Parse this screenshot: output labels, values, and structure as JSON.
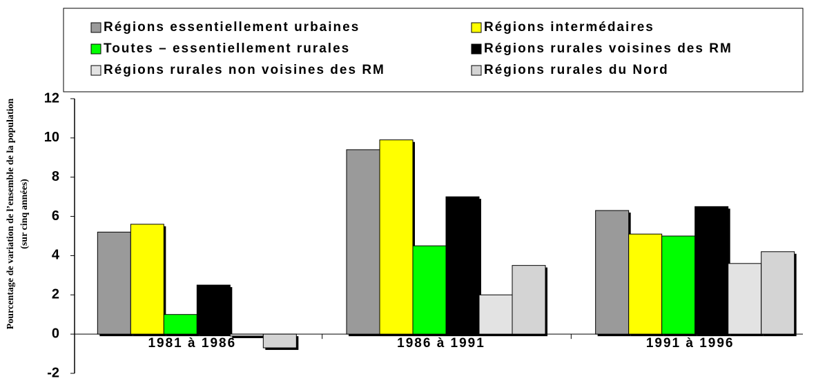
{
  "chart_data": {
    "type": "bar",
    "ylabel": [
      "Pourcentage de variation de l’ensemble de la population",
      "(sur cinq années)"
    ],
    "categories": [
      "1981 à 1986",
      "1986 à 1991",
      "1991 à 1996"
    ],
    "series": [
      {
        "name": "Régions essentiellement urbaines",
        "color": "#9a9a9a",
        "values": [
          5.2,
          9.4,
          6.3
        ]
      },
      {
        "name": "Régions intermédaires",
        "color": "#ffff00",
        "values": [
          5.6,
          9.9,
          5.1
        ]
      },
      {
        "name": "Toutes – essentiellement rurales",
        "color": "#00ff00",
        "values": [
          1.0,
          4.5,
          5.0
        ]
      },
      {
        "name": "Régions rurales voisines des RM",
        "color": "#000000",
        "values": [
          2.5,
          7.0,
          6.5
        ]
      },
      {
        "name": "Régions rurales non voisines des RM",
        "color": "#e3e3e3",
        "values": [
          -0.1,
          2.0,
          3.6
        ]
      },
      {
        "name": "Régions rurales du Nord",
        "color": "#d4d4d4",
        "values": [
          -0.7,
          3.5,
          4.2
        ]
      }
    ],
    "ylim": [
      -2,
      12
    ],
    "yticks": [
      -2,
      0,
      2,
      4,
      6,
      8,
      10,
      12
    ]
  }
}
